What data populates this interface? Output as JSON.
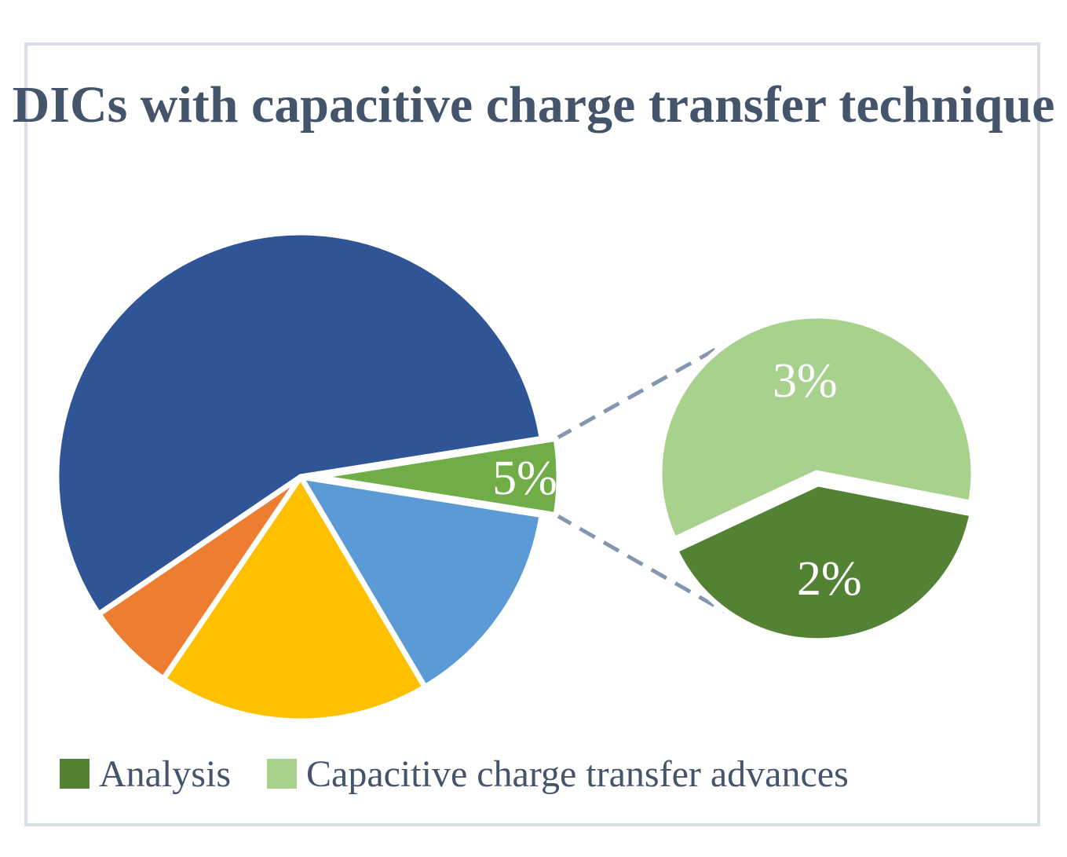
{
  "chart_data": {
    "type": "pie",
    "title": "DICs with capacitive charge transfer technique",
    "main_pie": {
      "slices": [
        {
          "value": 5,
          "label": "5%",
          "color": "#70ad47",
          "exploded": true
        },
        {
          "value": 57,
          "label": "",
          "color": "#2f5597"
        },
        {
          "value": 6,
          "label": "",
          "color": "#ed7d31"
        },
        {
          "value": 18,
          "label": "",
          "color": "#ffc000"
        },
        {
          "value": 14,
          "label": "",
          "color": "#5b9bd5"
        }
      ]
    },
    "sub_pie": {
      "slices": [
        {
          "name": "Capacitive charge transfer advances",
          "value": 3,
          "label": "3%",
          "color": "#a9d18e"
        },
        {
          "name": "Analysis",
          "value": 2,
          "label": "2%",
          "color": "#548235",
          "exploded": true
        }
      ]
    },
    "legend": {
      "position": "bottom",
      "items": [
        {
          "label": "Analysis",
          "color": "#548235"
        },
        {
          "label": "Capacitive charge transfer advances",
          "color": "#a9d18e"
        }
      ]
    },
    "connector_color": "#8497b0"
  }
}
